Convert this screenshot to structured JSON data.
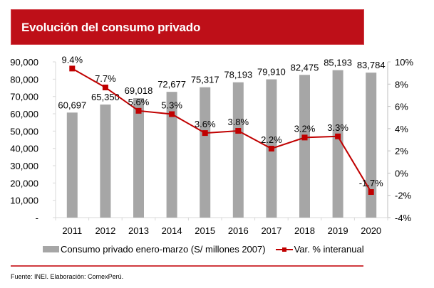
{
  "header": {
    "title": "Evolución del consumo privado"
  },
  "footer": {
    "source": "Fuente: INEI. Elaboración: ComexPerú."
  },
  "colors": {
    "banner": "#be0f18",
    "bars": "#a6a6a6",
    "line": "#c00000",
    "divider": "#d03a3f"
  },
  "chart_data": {
    "type": "bar",
    "title": "Evolución del consumo privado",
    "categories": [
      "2011",
      "2012",
      "2013",
      "2014",
      "2015",
      "2016",
      "2017",
      "2018",
      "2019",
      "2020"
    ],
    "series": [
      {
        "name": "Consumo privado enero-marzo (S/ millones 2007)",
        "type": "bar",
        "axis": "left",
        "values": [
          60697,
          65350,
          69018,
          72677,
          75317,
          78193,
          79910,
          82475,
          85193,
          83784
        ],
        "labels": [
          "60,697",
          "65,350",
          "69,018",
          "72,677",
          "75,317",
          "78,193",
          "79,910",
          "82,475",
          "85,193",
          "83,784"
        ]
      },
      {
        "name": "Var. % interanual",
        "type": "line",
        "axis": "right",
        "values": [
          9.4,
          7.7,
          5.6,
          5.3,
          3.6,
          3.8,
          2.2,
          3.2,
          3.3,
          -1.7
        ],
        "labels": [
          "9.4%",
          "7.7%",
          "5.6%",
          "5.3%",
          "3.6%",
          "3.8%",
          "2.2%",
          "3.2%",
          "3.3%",
          "-1.7%"
        ]
      }
    ],
    "y_left": {
      "ylim": [
        0,
        90000
      ],
      "ticks": [
        0,
        10000,
        20000,
        30000,
        40000,
        50000,
        60000,
        70000,
        80000,
        90000
      ],
      "tick_labels": [
        "-",
        "10,000",
        "20,000",
        "30,000",
        "40,000",
        "50,000",
        "60,000",
        "70,000",
        "80,000",
        "90,000"
      ]
    },
    "y_right": {
      "ylim": [
        -4,
        10
      ],
      "ticks": [
        -4,
        -2,
        0,
        2,
        4,
        6,
        8,
        10
      ],
      "tick_labels": [
        "-4%",
        "-2%",
        "0%",
        "2%",
        "4%",
        "6%",
        "8%",
        "10%"
      ]
    },
    "xlabel": "",
    "ylabel": "",
    "grid": false,
    "legend": {
      "position": "bottom",
      "entries": [
        "Consumo privado enero-marzo (S/ millones 2007)",
        "Var. % interanual"
      ]
    }
  }
}
